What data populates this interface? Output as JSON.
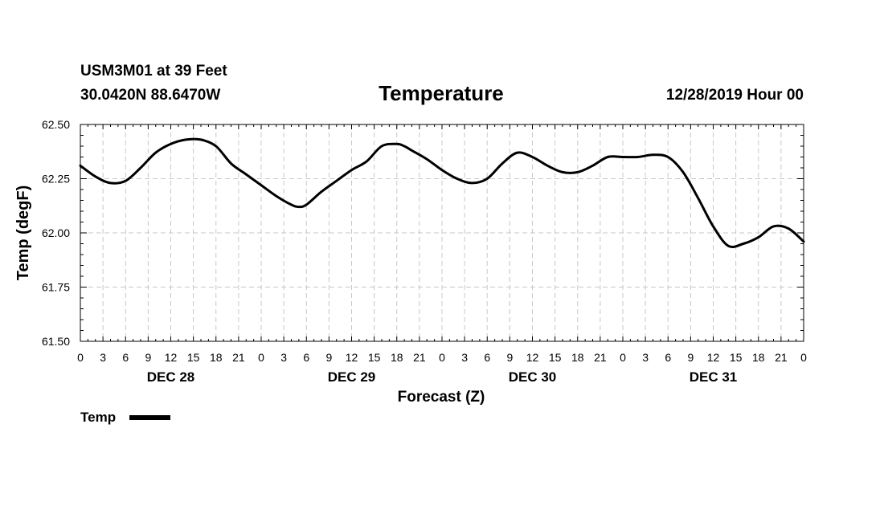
{
  "header": {
    "station": "USM3M01 at 39 Feet",
    "location": "30.0420N 88.6470W",
    "issued": "12/28/2019 Hour 00"
  },
  "chart_data": {
    "type": "line",
    "title": "Temperature",
    "xlabel": "Forecast (Z)",
    "ylabel": "Temp (degF)",
    "ylim": [
      61.5,
      62.5
    ],
    "yticks": [
      "61.50",
      "61.75",
      "62.00",
      "62.25",
      "62.50"
    ],
    "xlim_hours": [
      0,
      96
    ],
    "xtick_labels": [
      "0",
      "3",
      "6",
      "9",
      "12",
      "15",
      "18",
      "21",
      "0",
      "3",
      "6",
      "9",
      "12",
      "15",
      "18",
      "21",
      "0",
      "3",
      "6",
      "9",
      "12",
      "15",
      "18",
      "21",
      "0",
      "3",
      "6",
      "9",
      "12",
      "15",
      "18",
      "21",
      "0"
    ],
    "date_labels": [
      {
        "label": "DEC 28",
        "hour": 12
      },
      {
        "label": "DEC 29",
        "hour": 36
      },
      {
        "label": "DEC 30",
        "hour": 60
      },
      {
        "label": "DEC 31",
        "hour": 84
      }
    ],
    "grid": true,
    "legend_position": "bottom-left",
    "series": [
      {
        "name": "Temp",
        "color": "#000000",
        "x": [
          0,
          2,
          4,
          6,
          8,
          10,
          12,
          14,
          16,
          18,
          20,
          22,
          24,
          26,
          28,
          29,
          30,
          32,
          34,
          36,
          38,
          40,
          42,
          43,
          44,
          46,
          48,
          50,
          52,
          54,
          56,
          58,
          60,
          62,
          64,
          66,
          68,
          70,
          72,
          74,
          76,
          78,
          80,
          82,
          84,
          86,
          88,
          90,
          92,
          94,
          96
        ],
        "values": [
          62.31,
          62.26,
          62.23,
          62.24,
          62.3,
          62.37,
          62.41,
          62.43,
          62.43,
          62.4,
          62.32,
          62.27,
          62.22,
          62.17,
          62.13,
          62.12,
          62.13,
          62.19,
          62.24,
          62.29,
          62.33,
          62.4,
          62.41,
          62.4,
          62.38,
          62.34,
          62.29,
          62.25,
          62.23,
          62.25,
          62.32,
          62.37,
          62.35,
          62.31,
          62.28,
          62.28,
          62.31,
          62.35,
          62.35,
          62.35,
          62.36,
          62.35,
          62.28,
          62.16,
          62.03,
          61.94,
          61.95,
          61.98,
          62.03,
          62.02,
          61.96
        ]
      }
    ]
  },
  "legend": {
    "label": "Temp"
  }
}
